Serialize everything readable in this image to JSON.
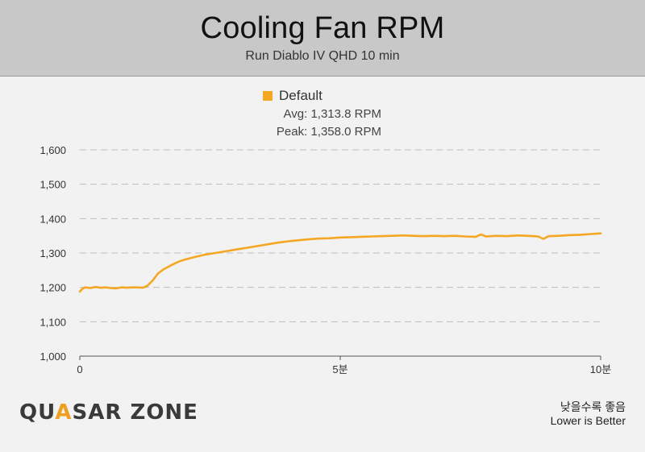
{
  "header": {
    "title": "Cooling Fan RPM",
    "subtitle": "Run Diablo IV QHD 10 min"
  },
  "legend": {
    "name": "Default",
    "avg_text": "Avg: 1,313.8 RPM",
    "peak_text": "Peak: 1,358.0 RPM"
  },
  "footer": {
    "logo_part1": "QU",
    "logo_accent": "A",
    "logo_part2": "SAR ZONE",
    "note_ko": "낮을수록 좋음",
    "note_en": "Lower is Better"
  },
  "colors": {
    "series": "#f5a623",
    "grid": "#bdbdbd",
    "axis": "#555555"
  },
  "chart_data": {
    "type": "line",
    "title": "Cooling Fan RPM",
    "subtitle": "Run Diablo IV QHD 10 min",
    "xlabel": "",
    "ylabel": "",
    "xlim": [
      0,
      10
    ],
    "ylim": [
      1000,
      1600
    ],
    "yticks": [
      1000,
      1100,
      1200,
      1300,
      1400,
      1500,
      1600
    ],
    "ytick_labels": [
      "1,000",
      "1,100",
      "1,200",
      "1,300",
      "1,400",
      "1,500",
      "1,600"
    ],
    "xticks": [
      0,
      5,
      10
    ],
    "xtick_labels": [
      "0",
      "5분",
      "10분"
    ],
    "grid": true,
    "legend_position": "top-center",
    "series": [
      {
        "name": "Default",
        "avg": 1313.8,
        "peak": 1358.0,
        "x": [
          0,
          0.05,
          0.1,
          0.2,
          0.3,
          0.4,
          0.5,
          0.6,
          0.7,
          0.8,
          0.9,
          1.0,
          1.1,
          1.2,
          1.25,
          1.3,
          1.4,
          1.5,
          1.6,
          1.7,
          1.8,
          1.9,
          2.0,
          2.2,
          2.4,
          2.6,
          2.8,
          3.0,
          3.2,
          3.4,
          3.6,
          3.8,
          4.0,
          4.2,
          4.4,
          4.6,
          4.8,
          5.0,
          5.2,
          5.4,
          5.6,
          5.8,
          6.0,
          6.2,
          6.4,
          6.6,
          6.8,
          7.0,
          7.2,
          7.4,
          7.6,
          7.7,
          7.8,
          8.0,
          8.2,
          8.4,
          8.6,
          8.8,
          8.9,
          9.0,
          9.2,
          9.4,
          9.6,
          9.8,
          10.0
        ],
        "y": [
          1188,
          1196,
          1200,
          1198,
          1201,
          1199,
          1200,
          1198,
          1197,
          1200,
          1199,
          1200,
          1200,
          1199,
          1201,
          1205,
          1220,
          1240,
          1252,
          1260,
          1268,
          1275,
          1280,
          1288,
          1295,
          1300,
          1305,
          1310,
          1315,
          1320,
          1325,
          1330,
          1334,
          1337,
          1340,
          1342,
          1343,
          1345,
          1346,
          1347,
          1348,
          1349,
          1350,
          1351,
          1350,
          1349,
          1350,
          1349,
          1350,
          1348,
          1347,
          1354,
          1348,
          1350,
          1349,
          1351,
          1350,
          1348,
          1341,
          1349,
          1350,
          1352,
          1353,
          1355,
          1357
        ]
      }
    ]
  }
}
